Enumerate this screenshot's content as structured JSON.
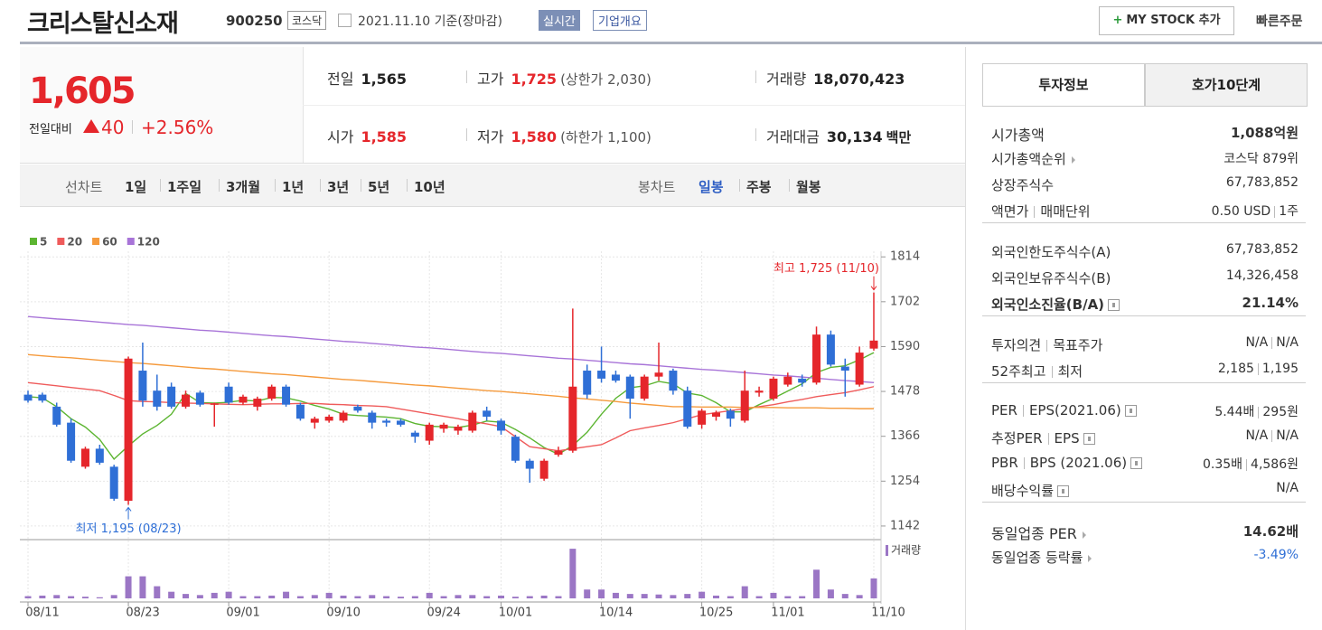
{
  "header": {
    "title": "크리스탈신소재",
    "code": "900250",
    "market": "코스닥",
    "date": "2021.11.10 기준(장마감)",
    "realtime": "실시간",
    "company": "기업개요",
    "mystock": "MY STOCK 추가",
    "quick_order": "빠른주문"
  },
  "quote": {
    "price": "1,605",
    "change_label": "전일대비",
    "change": "40",
    "change_pct": "+2.56%",
    "items": [
      {
        "label": "전일",
        "value": "1,565"
      },
      {
        "label": "고가",
        "value": "1,725",
        "note": "(상한가 2,030)",
        "color": "#e5262b"
      },
      {
        "label": "거래량",
        "value": "18,070,423"
      },
      {
        "label": "시가",
        "value": "1,585",
        "color": "#e5262b"
      },
      {
        "label": "저가",
        "value": "1,580",
        "note": "(하한가 1,100)",
        "color": "#e5262b"
      },
      {
        "label": "거래대금",
        "value": "30,134",
        "unit": "백만"
      }
    ]
  },
  "chart_tabs": {
    "line_label": "선차트",
    "line": [
      "1일",
      "1주일",
      "3개월",
      "1년",
      "3년",
      "5년",
      "10년"
    ],
    "candle_label": "봉차트",
    "candle": [
      "일봉",
      "주봉",
      "월봉"
    ],
    "selected_candle": 0
  },
  "chart_data": {
    "type": "candlestick",
    "categories": [
      "08/11",
      null,
      null,
      null,
      null,
      null,
      null,
      "08/23",
      null,
      null,
      null,
      null,
      null,
      null,
      "09/01",
      null,
      null,
      null,
      null,
      null,
      null,
      "09/10",
      null,
      null,
      null,
      null,
      null,
      null,
      "09/24",
      null,
      null,
      null,
      null,
      "10/01",
      null,
      null,
      null,
      null,
      null,
      null,
      "10/14",
      null,
      null,
      null,
      null,
      null,
      null,
      "10/25",
      null,
      null,
      null,
      null,
      "11/01",
      null,
      null,
      null,
      null,
      null,
      null,
      "11/10"
    ],
    "open": [
      1470,
      1470,
      1440,
      1400,
      1290,
      1335,
      1290,
      1205,
      1530,
      1480,
      1490,
      1440,
      1475,
      1445,
      1490,
      1450,
      1440,
      1460,
      1490,
      1445,
      1400,
      1405,
      1405,
      1440,
      1425,
      1405,
      1405,
      1375,
      1355,
      1385,
      1380,
      1380,
      1430,
      1405,
      1365,
      1305,
      1260,
      1320,
      1330,
      1530,
      1530,
      1520,
      1515,
      1460,
      1515,
      1530,
      1480,
      1395,
      1415,
      1430,
      1405,
      1475,
      1460,
      1495,
      1510,
      1500,
      1620,
      1540,
      1495,
      1585
    ],
    "high": [
      1480,
      1475,
      1450,
      1410,
      1340,
      1345,
      1295,
      1565,
      1600,
      1520,
      1500,
      1480,
      1480,
      1450,
      1500,
      1470,
      1465,
      1495,
      1495,
      1450,
      1415,
      1420,
      1430,
      1445,
      1430,
      1410,
      1410,
      1380,
      1400,
      1400,
      1395,
      1430,
      1440,
      1410,
      1370,
      1310,
      1310,
      1340,
      1685,
      1545,
      1590,
      1530,
      1520,
      1520,
      1600,
      1535,
      1490,
      1435,
      1430,
      1435,
      1530,
      1490,
      1515,
      1525,
      1520,
      1640,
      1630,
      1560,
      1590,
      1725
    ],
    "low": [
      1450,
      1450,
      1390,
      1300,
      1285,
      1295,
      1205,
      1195,
      1440,
      1430,
      1435,
      1435,
      1440,
      1390,
      1445,
      1445,
      1430,
      1455,
      1440,
      1405,
      1385,
      1400,
      1400,
      1425,
      1385,
      1390,
      1390,
      1350,
      1345,
      1375,
      1370,
      1375,
      1405,
      1370,
      1300,
      1250,
      1255,
      1315,
      1325,
      1460,
      1500,
      1500,
      1410,
      1455,
      1505,
      1470,
      1385,
      1385,
      1405,
      1390,
      1400,
      1465,
      1455,
      1490,
      1490,
      1495,
      1540,
      1465,
      1490,
      1580
    ],
    "close": [
      1455,
      1455,
      1395,
      1305,
      1335,
      1300,
      1210,
      1560,
      1455,
      1440,
      1440,
      1470,
      1445,
      1448,
      1450,
      1465,
      1460,
      1490,
      1445,
      1410,
      1410,
      1415,
      1425,
      1430,
      1400,
      1400,
      1395,
      1365,
      1395,
      1395,
      1390,
      1425,
      1415,
      1380,
      1305,
      1285,
      1305,
      1330,
      1490,
      1470,
      1510,
      1505,
      1460,
      1515,
      1525,
      1480,
      1390,
      1430,
      1425,
      1410,
      1480,
      1480,
      1510,
      1515,
      1500,
      1620,
      1545,
      1530,
      1575,
      1605
    ],
    "up_color": "#e5262b",
    "down_color": "#2f6fd6",
    "series": [
      {
        "name": "5",
        "color": "#5cb531",
        "values": [
          1465,
          1462,
          1440,
          1410,
          1389,
          1358,
          1309,
          1342,
          1372,
          1393,
          1421,
          1473,
          1450,
          1449,
          1451,
          1456,
          1454,
          1463,
          1462,
          1454,
          1443,
          1434,
          1421,
          1418,
          1416,
          1414,
          1410,
          1398,
          1391,
          1390,
          1388,
          1394,
          1404,
          1401,
          1383,
          1362,
          1338,
          1321,
          1343,
          1376,
          1421,
          1461,
          1487,
          1492,
          1503,
          1497,
          1474,
          1468,
          1450,
          1427,
          1427,
          1445,
          1461,
          1479,
          1497,
          1525,
          1538,
          1542,
          1557,
          1575
        ]
      },
      {
        "name": "20",
        "color": "#ef5b5b",
        "values": [
          1500,
          1496,
          1492,
          1488,
          1484,
          1480,
          1468,
          1455,
          1453,
          1452,
          1450,
          1449,
          1448,
          1447,
          1446,
          1445,
          1446,
          1447,
          1447,
          1448,
          1448,
          1446,
          1445,
          1443,
          1442,
          1440,
          1434,
          1428,
          1422,
          1416,
          1410,
          1403,
          1397,
          1390,
          1365,
          1340,
          1335,
          1330,
          1335,
          1340,
          1345,
          1362,
          1380,
          1387,
          1393,
          1400,
          1410,
          1420,
          1425,
          1430,
          1435,
          1440,
          1445,
          1452,
          1458,
          1465,
          1470,
          1475,
          1482,
          1490
        ]
      },
      {
        "name": "60",
        "color": "#f59a3c",
        "values": [
          1570,
          1567,
          1564,
          1562,
          1559,
          1556,
          1553,
          1550,
          1548,
          1545,
          1542,
          1539,
          1536,
          1534,
          1531,
          1528,
          1525,
          1522,
          1520,
          1517,
          1514,
          1511,
          1508,
          1506,
          1503,
          1500,
          1497,
          1494,
          1492,
          1489,
          1486,
          1483,
          1480,
          1478,
          1475,
          1472,
          1469,
          1466,
          1462,
          1459,
          1456,
          1453,
          1449,
          1446,
          1443,
          1440,
          1440,
          1439,
          1439,
          1439,
          1438,
          1438,
          1438,
          1437,
          1437,
          1437,
          1436,
          1436,
          1435,
          1435
        ]
      },
      {
        "name": "120",
        "color": "#a874d8",
        "values": [
          1665,
          1662,
          1659,
          1657,
          1654,
          1651,
          1648,
          1645,
          1643,
          1640,
          1637,
          1634,
          1631,
          1629,
          1626,
          1623,
          1620,
          1617,
          1615,
          1612,
          1609,
          1606,
          1603,
          1601,
          1598,
          1595,
          1592,
          1589,
          1587,
          1584,
          1581,
          1578,
          1575,
          1573,
          1570,
          1567,
          1564,
          1561,
          1559,
          1556,
          1553,
          1550,
          1547,
          1545,
          1542,
          1539,
          1536,
          1533,
          1531,
          1528,
          1525,
          1522,
          1519,
          1517,
          1514,
          1511,
          1508,
          1505,
          1503,
          1500
        ]
      }
    ],
    "volume": {
      "name": "거래량",
      "color": "#9b76c5",
      "ylim": [
        0,
        50
      ],
      "values": [
        2,
        2.5,
        3,
        2,
        1.5,
        1,
        3,
        20,
        20,
        11,
        6,
        4,
        3,
        5,
        6,
        2,
        2,
        2.5,
        6,
        2,
        3,
        5,
        2.5,
        2,
        3,
        2,
        1.5,
        2,
        5,
        2,
        3,
        3,
        2,
        2.5,
        1.5,
        2,
        2.5,
        2,
        45,
        8,
        8,
        5,
        4,
        4,
        3.5,
        3,
        4,
        6,
        2.5,
        2,
        11,
        2,
        5,
        2,
        2,
        26,
        8,
        4,
        3,
        18.07
      ]
    },
    "ylim": [
      1108,
      1828
    ],
    "yticks": [
      1142,
      1254,
      1366,
      1478,
      1590,
      1702,
      1814
    ],
    "grid": true,
    "high_label": "최고 1,725 (11/10)",
    "low_label": "최저 1,195 (08/23)",
    "high_label_color": "#e5262b",
    "low_label_color": "#2f6fd6"
  },
  "info": {
    "tabs": [
      "투자정보",
      "호가10단계"
    ],
    "groups": [
      [
        {
          "label": [
            "시가총액"
          ],
          "value": [
            "1,088억원"
          ],
          "bold_value": true,
          "large": true
        },
        {
          "label": [
            "시가총액순위"
          ],
          "arrow": true,
          "value": [
            "코스닥 879위"
          ]
        },
        {
          "label": [
            "상장주식수"
          ],
          "value": [
            "67,783,852"
          ]
        },
        {
          "label": [
            "액면가",
            "매매단위"
          ],
          "value": [
            "0.50 USD",
            "1주"
          ]
        }
      ],
      [
        {
          "label": [
            "외국인한도주식수(A)"
          ],
          "value": [
            "67,783,852"
          ]
        },
        {
          "label": [
            "외국인보유주식수(B)"
          ],
          "value": [
            "14,326,458"
          ]
        },
        {
          "label": [
            "외국인소진율(B/A)"
          ],
          "help": true,
          "bold_label": true,
          "bold_value": true,
          "value": [
            "21.14%"
          ]
        }
      ],
      [
        {
          "label": [
            "투자의견",
            "목표주가"
          ],
          "value": [
            "N/A",
            "N/A"
          ]
        },
        {
          "label": [
            "52주최고",
            "최저"
          ],
          "value": [
            "2,185",
            "1,195"
          ]
        }
      ],
      [
        {
          "label": [
            "PER",
            "EPS(2021.06)"
          ],
          "help": true,
          "value": [
            "5.44배",
            "295원"
          ]
        },
        {
          "label": [
            "추정PER",
            "EPS"
          ],
          "help": true,
          "value": [
            "N/A",
            "N/A"
          ]
        },
        {
          "label": [
            "PBR",
            "BPS (2021.06)"
          ],
          "help": true,
          "value": [
            "0.35배",
            "4,586원"
          ]
        },
        {
          "label": [
            "배당수익률"
          ],
          "help": true,
          "value": [
            "N/A"
          ]
        }
      ],
      [
        {
          "label": [
            "동일업종 PER"
          ],
          "arrow": true,
          "bold_value": true,
          "large": true,
          "value": [
            "14.62배"
          ]
        },
        {
          "label": [
            "동일업종 등락률"
          ],
          "arrow": true,
          "value": [
            "-3.49%"
          ],
          "color": "#2f6fd6"
        }
      ]
    ]
  }
}
